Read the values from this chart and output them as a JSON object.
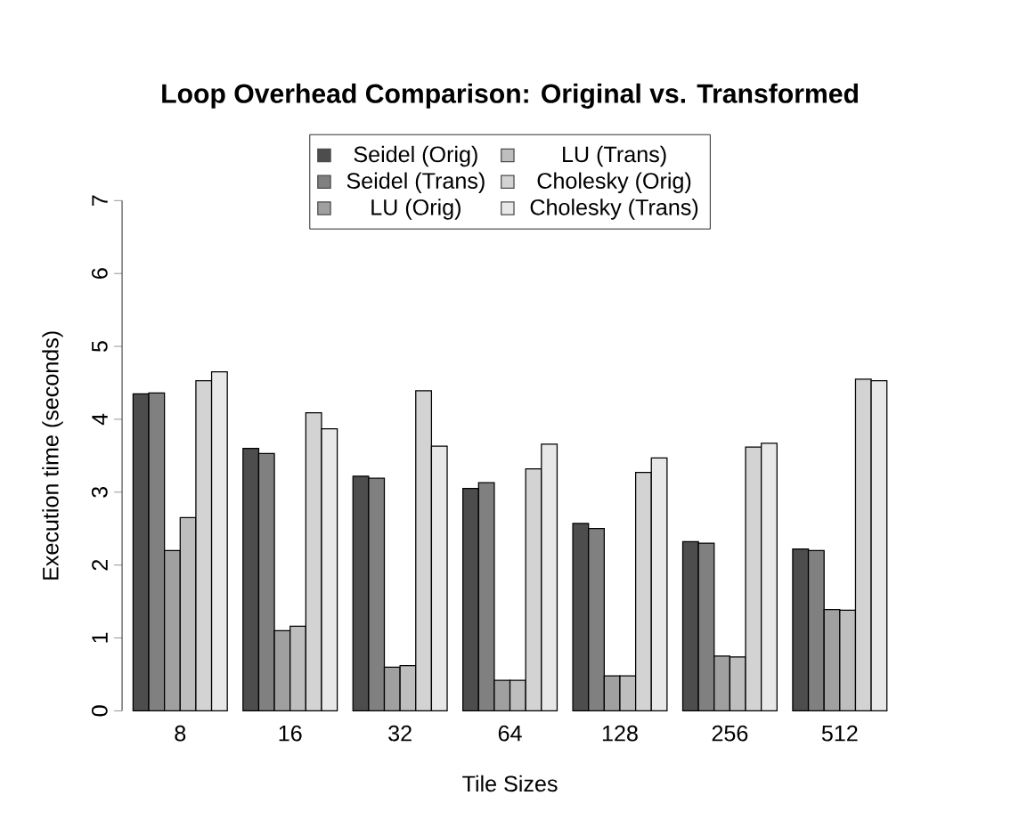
{
  "chart_data": {
    "type": "bar",
    "title": "Loop Overhead Comparison: Original vs. Transformed",
    "xlabel": "Tile Sizes",
    "ylabel": "Execution time (seconds)",
    "categories": [
      "8",
      "16",
      "32",
      "64",
      "128",
      "256",
      "512"
    ],
    "series": [
      {
        "name": "Seidel (Orig)",
        "color": "#4d4d4d",
        "values": [
          4.35,
          3.6,
          3.22,
          3.05,
          2.57,
          2.32,
          2.22
        ]
      },
      {
        "name": "Seidel (Trans)",
        "color": "#808080",
        "values": [
          4.36,
          3.53,
          3.19,
          3.13,
          2.5,
          2.3,
          2.2
        ]
      },
      {
        "name": "LU (Orig)",
        "color": "#a0a0a0",
        "values": [
          2.2,
          1.1,
          0.6,
          0.42,
          0.48,
          0.75,
          1.39
        ]
      },
      {
        "name": "LU (Trans)",
        "color": "#bebebe",
        "values": [
          2.65,
          1.16,
          0.62,
          0.42,
          0.48,
          0.74,
          1.38
        ]
      },
      {
        "name": "Cholesky (Orig)",
        "color": "#d3d3d3",
        "values": [
          4.53,
          4.09,
          4.39,
          3.32,
          3.27,
          3.62,
          4.55
        ]
      },
      {
        "name": "Cholesky (Trans)",
        "color": "#e8e8e8",
        "values": [
          4.65,
          3.87,
          3.63,
          3.66,
          3.47,
          3.67,
          4.53
        ]
      }
    ],
    "ylim": [
      0,
      7
    ],
    "yticks": [
      0,
      1,
      2,
      3,
      4,
      5,
      6,
      7
    ],
    "legend": "top",
    "grid": false
  }
}
